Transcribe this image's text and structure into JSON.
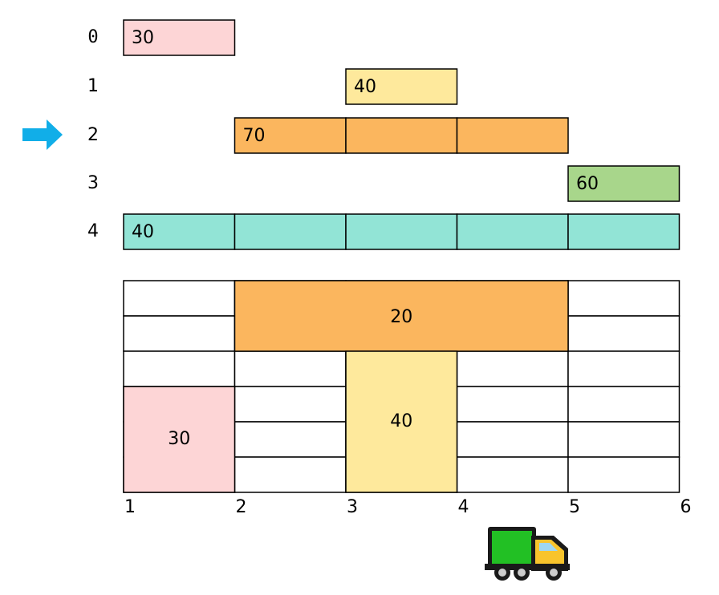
{
  "rows": [
    {
      "index": "0",
      "value": "30"
    },
    {
      "index": "1",
      "value": "40"
    },
    {
      "index": "2",
      "value": "70"
    },
    {
      "index": "3",
      "value": "60"
    },
    {
      "index": "4",
      "value": "40"
    }
  ],
  "axis_labels": [
    "1",
    "2",
    "3",
    "4",
    "5",
    "6"
  ],
  "blocks": [
    {
      "value": "20"
    },
    {
      "value": "40"
    },
    {
      "value": "30"
    }
  ]
}
